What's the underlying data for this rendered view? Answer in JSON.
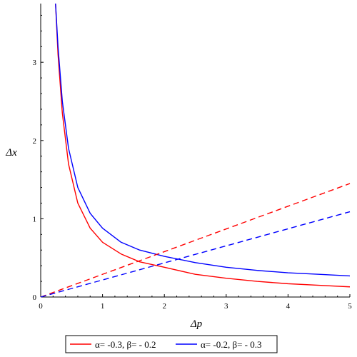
{
  "chart_data": {
    "type": "line",
    "xlabel": "Δp",
    "ylabel": "Δx",
    "xlim": [
      0,
      5
    ],
    "ylim": [
      0,
      3.75
    ],
    "x_ticks": [
      0,
      1,
      2,
      3,
      4,
      5
    ],
    "y_ticks": [
      0,
      1,
      2,
      3
    ],
    "grid": false,
    "legend_position": "bottom",
    "series": [
      {
        "name": "α= -0.3, β= - 0.2",
        "color": "#ff0000",
        "style": "solid",
        "x": [
          0.24,
          0.28,
          0.35,
          0.45,
          0.6,
          0.8,
          1.0,
          1.3,
          1.6,
          2.0,
          2.5,
          3.0,
          3.5,
          4.0,
          4.5,
          5.0
        ],
        "y": [
          3.75,
          3.1,
          2.35,
          1.7,
          1.2,
          0.88,
          0.7,
          0.55,
          0.45,
          0.38,
          0.29,
          0.24,
          0.2,
          0.17,
          0.15,
          0.13
        ]
      },
      {
        "name": "α= -0.2, β= - 0.3",
        "color": "#0000ff",
        "style": "solid",
        "x": [
          0.24,
          0.28,
          0.35,
          0.45,
          0.6,
          0.8,
          1.0,
          1.3,
          1.6,
          2.0,
          2.5,
          3.0,
          3.5,
          4.0,
          4.5,
          5.0
        ],
        "y": [
          3.75,
          3.2,
          2.5,
          1.9,
          1.4,
          1.07,
          0.88,
          0.7,
          0.6,
          0.52,
          0.44,
          0.38,
          0.34,
          0.31,
          0.29,
          0.27
        ]
      },
      {
        "name": "",
        "color": "#ff0000",
        "style": "dashed",
        "x": [
          0,
          5
        ],
        "y": [
          0,
          1.45
        ]
      },
      {
        "name": "",
        "color": "#0000ff",
        "style": "dashed",
        "x": [
          0,
          5
        ],
        "y": [
          0,
          1.09
        ]
      }
    ]
  },
  "legend": [
    {
      "label": "α= -0.3, β= - 0.2",
      "color": "#ff0000"
    },
    {
      "label": "α= -0.2, β= - 0.3",
      "color": "#0000ff"
    }
  ]
}
